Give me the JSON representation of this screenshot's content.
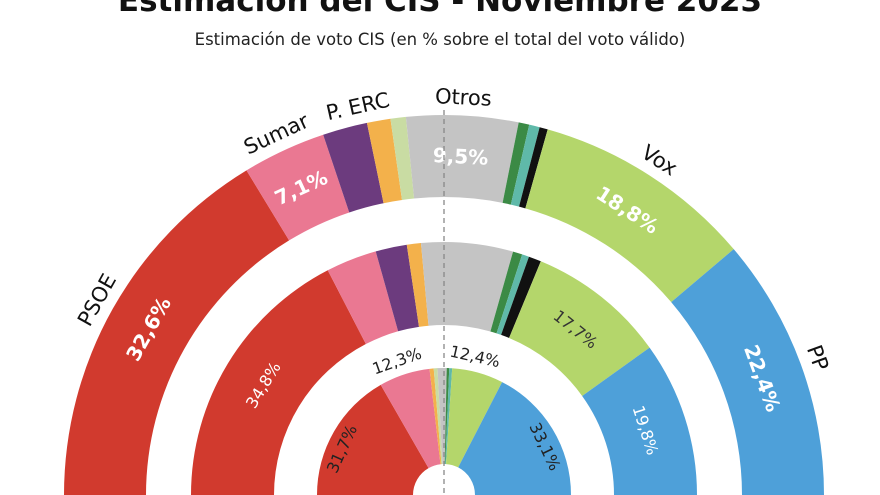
{
  "chart_data": {
    "type": "pie",
    "subtype": "nested-semicircle-donut",
    "title": "Estimación del CIS - Noviembre 2023",
    "subtitle": "Estimación de voto CIS (en % sobre el total del voto válido)",
    "colors": {
      "PSOE": "#d13a2e",
      "Sumar": "#ea7892",
      "Podemos": "#6c3b7e",
      "ERC": "#f3b14b",
      "Bildu": "#c9dca3",
      "Otros": "#c4c4c4",
      "DarkGreen": "#3b8a45",
      "Teal": "#5fb9a9",
      "Black": "#111111",
      "Vox": "#b4d66b",
      "PP": "#4ea0d9"
    },
    "rings": [
      {
        "ring": "outer",
        "segments": [
          {
            "key": "PSOE",
            "name": "PSOE",
            "value": 32.6,
            "label": "32,6%"
          },
          {
            "key": "Sumar",
            "name": "Sumar",
            "value": 7.1,
            "label": "7,1%"
          },
          {
            "key": "Podemos",
            "value": 3.8
          },
          {
            "key": "ERC",
            "value": 2.0
          },
          {
            "key": "Bildu",
            "value": 1.3
          },
          {
            "key": "Otros",
            "name": "Otros",
            "value": 9.5,
            "label": "9,5%"
          },
          {
            "key": "DarkGreen",
            "value": 0.9
          },
          {
            "key": "Teal",
            "value": 0.9
          },
          {
            "key": "Black",
            "value": 0.7
          },
          {
            "key": "Vox",
            "name": "Vox",
            "value": 18.8,
            "label": "18,8%"
          },
          {
            "key": "PP",
            "name": "PP",
            "value": 22.4,
            "label": "22,4%"
          }
        ],
        "extra_names": [
          {
            "between": [
              "Podemos",
              "ERC"
            ],
            "name": "P. ERC"
          }
        ]
      },
      {
        "ring": "middle",
        "segments": [
          {
            "key": "PSOE",
            "value": 34.8,
            "label": "34,8%"
          },
          {
            "key": "Sumar",
            "value": 6.5
          },
          {
            "key": "Podemos",
            "value": 4.0
          },
          {
            "key": "ERC",
            "value": 1.8
          },
          {
            "key": "Otros",
            "value": 11.7
          },
          {
            "key": "DarkGreen",
            "value": 1.2
          },
          {
            "key": "Teal",
            "value": 0.9
          },
          {
            "key": "Black",
            "value": 1.6
          },
          {
            "key": "Vox",
            "value": 17.7,
            "label": "17,7%"
          },
          {
            "key": "PP",
            "value": 19.8,
            "label": "19,8%"
          }
        ]
      },
      {
        "ring": "inner",
        "segments": [
          {
            "key": "PSOE",
            "value": 31.7,
            "label": "31,7%"
          },
          {
            "key": "Sumar",
            "value": 12.3,
            "label": "12,3%"
          },
          {
            "key": "ERC",
            "value": 1.0
          },
          {
            "key": "Bildu",
            "value": 0.9
          },
          {
            "key": "Otros",
            "value": 2.2
          },
          {
            "key": "DarkGreen",
            "value": 0.6
          },
          {
            "key": "Teal",
            "value": 0.7
          },
          {
            "key": "Vox",
            "value": 12.4,
            "label": "12,4%"
          },
          {
            "key": "PP",
            "value": 33.1,
            "label": "33,1%"
          }
        ]
      }
    ]
  }
}
